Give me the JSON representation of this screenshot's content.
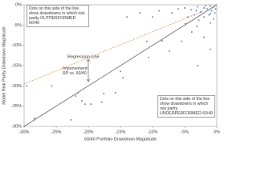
{
  "chart_data": {
    "type": "scatter",
    "x_label": "60/40 Portfolio Drawdown Magnitude",
    "y_label": "Model Risk Parity Drawdown Magnitude",
    "annotations": [
      "Dots on this side of the line show drawdowns in which risk parity OUTPERFORMED 60/40",
      "Regression Line",
      "Improvement: RP vs. 60/40",
      "Dots on this side of the line show drawdowns in which risk parity UNDERPERFORMED 60/40"
    ],
    "xlim": [
      -30,
      0
    ],
    "ylim": [
      -30,
      0
    ],
    "xticks": [
      {
        "value": -30,
        "label": "-30%"
      },
      {
        "value": -25,
        "label": "-25%"
      },
      {
        "value": -20,
        "label": "-20%"
      },
      {
        "value": -15,
        "label": "-15%"
      },
      {
        "value": -10,
        "label": "-10%"
      },
      {
        "value": -5,
        "label": "-5%"
      },
      {
        "value": 0,
        "label": "0%"
      }
    ],
    "yticks": [
      {
        "value": -30,
        "label": "-30%"
      },
      {
        "value": -25,
        "label": "-25%"
      },
      {
        "value": -20,
        "label": "-20%"
      },
      {
        "value": -15,
        "label": "-15%"
      },
      {
        "value": -10,
        "label": "-10%"
      },
      {
        "value": -5,
        "label": "-5%"
      },
      {
        "value": 0,
        "label": "0%"
      }
    ],
    "color": "#6a7fa8",
    "x": [
      -29.6,
      -25.7,
      -28.4,
      -22.7,
      -22,
      -21.6,
      -21,
      -20.5,
      -19.6,
      -17.9,
      -17.6,
      -15.8,
      -15,
      -14.6,
      -10.6,
      -10.9,
      -8.5,
      -7.4,
      -5.5,
      -3.9,
      -4.9,
      -3.1,
      -1,
      -12,
      -9,
      -14,
      -7,
      -6,
      -10,
      -2,
      -1,
      -3,
      -0.5,
      -1,
      -1.5,
      -2,
      -0.8,
      -2.5,
      -3,
      -1.2,
      -0.3,
      -3.5,
      -4,
      -2,
      -0.5,
      -1.8,
      -4.5,
      -5,
      -2.8,
      -0.2,
      -1,
      -3.2
    ],
    "y": [
      -20,
      -20,
      -28,
      -28.4,
      -22.5,
      -21.7,
      -23.7,
      -24.5,
      -24.5,
      -24,
      -21.9,
      -21.7,
      -16.4,
      -18,
      -13,
      -9,
      -8.9,
      -11.4,
      -9,
      -6.7,
      -4.7,
      -5.3,
      -2.2,
      -2,
      -1.5,
      -3,
      -2,
      -1,
      -3,
      -8,
      -11,
      -15,
      -0.5,
      -0.3,
      -1,
      -0.8,
      -1.5,
      -1.8,
      -0.5,
      -2.5,
      -2,
      -2.5,
      -1.2,
      -3,
      -3.5,
      -0.2,
      -3,
      -0.8,
      -3.8,
      -1,
      -4.5,
      -1.4
    ],
    "parity_line": {
      "x": [
        -30,
        0
      ],
      "y": [
        -30,
        0
      ],
      "color": "#555555"
    },
    "regression_line": {
      "x": [
        -30,
        -2
      ],
      "y": [
        -19.5,
        -1.5
      ],
      "color": "#e08a3c"
    }
  }
}
